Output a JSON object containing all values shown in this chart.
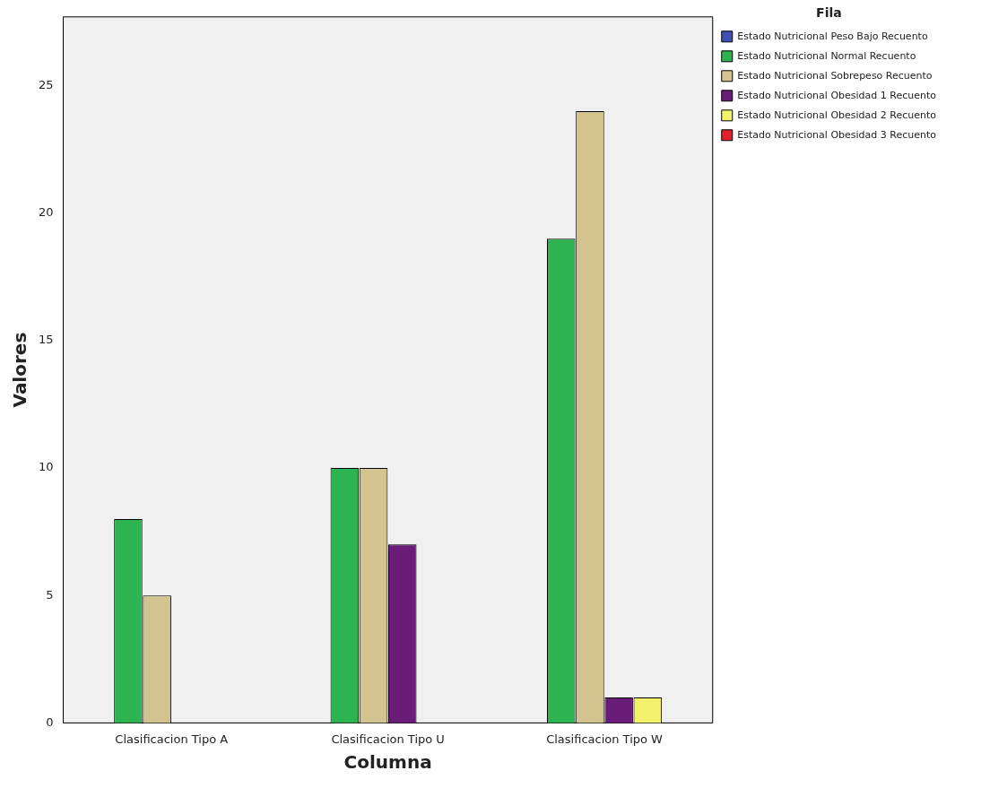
{
  "chart_data": {
    "type": "bar",
    "xlabel": "Columna",
    "ylabel": "Valores",
    "legend_title": "Fila",
    "legend": "right",
    "grid": false,
    "categories": [
      "Clasificacion Tipo A",
      "Clasificacion Tipo U",
      "Clasificacion Tipo W"
    ],
    "ylim": [
      0,
      27.7
    ],
    "yticks": [
      0,
      5,
      10,
      15,
      20,
      25
    ],
    "series": [
      {
        "name": "Estado Nutricional Peso Bajo Recuento",
        "color": "#3f4fb5",
        "values": [
          0,
          0,
          0
        ]
      },
      {
        "name": "Estado Nutricional Normal Recuento",
        "color": "#2db34f",
        "values": [
          8,
          10,
          19
        ]
      },
      {
        "name": "Estado Nutricional Sobrepeso Recuento",
        "color": "#d3c38e",
        "values": [
          5,
          10,
          24
        ]
      },
      {
        "name": "Estado Nutricional Obesidad 1 Recuento",
        "color": "#6a1d78",
        "values": [
          0,
          7,
          1
        ]
      },
      {
        "name": "Estado Nutricional Obesidad 2 Recuento",
        "color": "#f4f26c",
        "values": [
          0,
          0,
          1
        ]
      },
      {
        "name": "Estado Nutricional Obesidad 3 Recuento",
        "color": "#e51f2a",
        "values": [
          0,
          0,
          0
        ]
      }
    ]
  }
}
